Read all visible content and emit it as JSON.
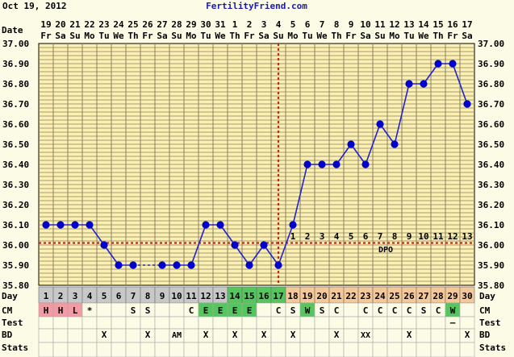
{
  "header": {
    "date": "Oct 19, 2012",
    "site": "FertilityFriend.com"
  },
  "row_labels": {
    "date": "Date",
    "day": "Day",
    "cm": "CM",
    "test": "Test",
    "bd": "BD",
    "stats": "Stats"
  },
  "dpo_label": "DPO",
  "colors": {
    "line": "#2323cc",
    "marker": "#0000cc",
    "coverline": "#b03020",
    "ovulation": "#b03020",
    "grid": "#8a8060",
    "plot_bg": "#fbf0b2",
    "day_gray": "#c8c8c8",
    "day_green": "#55c55e",
    "day_orange": "#f5c89a",
    "cm_pink": "#f49aa4",
    "cm_green": "#55c55e"
  },
  "chart_data": {
    "type": "line",
    "xlabel": "",
    "ylabel": "",
    "y_ticks": [
      "35.80",
      "35.90",
      "36.00",
      "36.10",
      "36.20",
      "36.30",
      "36.40",
      "36.50",
      "36.60",
      "36.70",
      "36.80",
      "36.90",
      "37.00"
    ],
    "ylim": [
      35.8,
      37.0
    ],
    "dates": [
      "19",
      "20",
      "21",
      "22",
      "23",
      "24",
      "25",
      "26",
      "27",
      "28",
      "29",
      "30",
      "31",
      "1",
      "2",
      "3",
      "4",
      "5",
      "6",
      "7",
      "8",
      "9",
      "10",
      "11",
      "12",
      "13",
      "14",
      "15",
      "16",
      "17"
    ],
    "weekdays": [
      "Fr",
      "Sa",
      "Su",
      "Mo",
      "Tu",
      "We",
      "Th",
      "Fr",
      "Sa",
      "Su",
      "Mo",
      "Tu",
      "We",
      "Th",
      "Fr",
      "Sa",
      "Su",
      "Mo",
      "Tu",
      "We",
      "Th",
      "Fr",
      "Sa",
      "Su",
      "Mo",
      "Tu",
      "We",
      "Th",
      "Fr",
      "Sa"
    ],
    "cycle_days": [
      "1",
      "2",
      "3",
      "4",
      "5",
      "6",
      "7",
      "8",
      "9",
      "10",
      "11",
      "12",
      "13",
      "14",
      "15",
      "16",
      "17",
      "18",
      "19",
      "20",
      "21",
      "22",
      "23",
      "24",
      "25",
      "26",
      "27",
      "28",
      "29",
      "30"
    ],
    "temperatures": [
      36.1,
      36.1,
      36.1,
      36.1,
      36.0,
      35.9,
      35.9,
      null,
      35.9,
      35.9,
      35.9,
      36.1,
      36.1,
      36.0,
      35.9,
      36.0,
      35.9,
      36.1,
      36.4,
      36.4,
      36.4,
      36.5,
      36.4,
      36.6,
      36.5,
      36.8,
      36.8,
      36.9,
      36.9,
      36.7
    ],
    "dashed_gaps": [
      [
        6,
        8
      ]
    ],
    "coverline": 36.01,
    "ovulation_day": 17,
    "dpo": [
      "1",
      "2",
      "3",
      "4",
      "5",
      "6",
      "7",
      "8",
      "9",
      "10",
      "11",
      "12",
      "13"
    ],
    "cm": [
      "H",
      "H",
      "L",
      "*",
      "",
      "",
      "S",
      "S",
      "",
      "",
      "C",
      "E",
      "E",
      "E",
      "E",
      "",
      "C",
      "S",
      "W",
      "S",
      "C",
      "",
      "C",
      "C",
      "C",
      "C",
      "S",
      "C",
      "W",
      ""
    ],
    "test": [
      "",
      "",
      "",
      "",
      "",
      "",
      "",
      "",
      "",
      "",
      "",
      "",
      "",
      "",
      "",
      "",
      "",
      "",
      "",
      "",
      "",
      "",
      "",
      "",
      "",
      "",
      "",
      "",
      "–",
      ""
    ],
    "bd": [
      "",
      "",
      "",
      "",
      "X",
      "",
      "",
      "X",
      "",
      "AM",
      "",
      "X",
      "",
      "X",
      "",
      "X",
      "",
      "X",
      "",
      "",
      "X",
      "",
      "XX",
      "",
      "",
      "X",
      "",
      "",
      "",
      "X"
    ],
    "day_colors": [
      "gray",
      "gray",
      "gray",
      "gray",
      "gray",
      "gray",
      "gray",
      "gray",
      "gray",
      "gray",
      "gray",
      "gray",
      "gray",
      "green",
      "green",
      "green",
      "green",
      "orange",
      "orange",
      "orange",
      "orange",
      "orange",
      "orange",
      "orange",
      "orange",
      "orange",
      "orange",
      "orange",
      "orange",
      "orange"
    ],
    "cm_colors": [
      "pink",
      "pink",
      "pink",
      "",
      "",
      "",
      "",
      "",
      "",
      "",
      "",
      "green",
      "green",
      "green",
      "green",
      "",
      "",
      "",
      "green",
      "",
      "",
      "",
      "",
      "",
      "",
      "",
      "",
      "",
      "green",
      ""
    ]
  }
}
